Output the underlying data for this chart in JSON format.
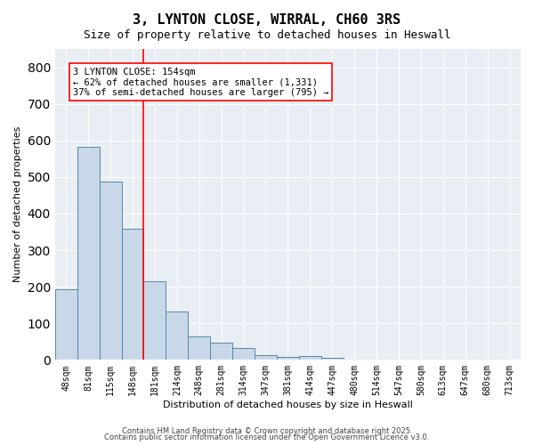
{
  "title": "3, LYNTON CLOSE, WIRRAL, CH60 3RS",
  "subtitle": "Size of property relative to detached houses in Heswall",
  "xlabel": "Distribution of detached houses by size in Heswall",
  "ylabel": "Number of detached properties",
  "bar_values": [
    193,
    583,
    487,
    358,
    216,
    133,
    65,
    48,
    33,
    14,
    8,
    10,
    5,
    0,
    0,
    0,
    0,
    0,
    0,
    0,
    0
  ],
  "categories": [
    "48sqm",
    "81sqm",
    "115sqm",
    "148sqm",
    "181sqm",
    "214sqm",
    "248sqm",
    "281sqm",
    "314sqm",
    "347sqm",
    "381sqm",
    "414sqm",
    "447sqm",
    "480sqm",
    "514sqm",
    "547sqm",
    "580sqm",
    "613sqm",
    "647sqm",
    "680sqm",
    "713sqm"
  ],
  "bar_color": "#c8d8e8",
  "bar_edge_color": "#5588aa",
  "vline_x": 3.5,
  "vline_color": "red",
  "annotation_text": "3 LYNTON CLOSE: 154sqm\n← 62% of detached houses are smaller (1,331)\n37% of semi-detached houses are larger (795) →",
  "annotation_box_color": "white",
  "annotation_box_edge": "red",
  "ylim": [
    0,
    850
  ],
  "background_color": "#e8eef4",
  "footer_line1": "Contains HM Land Registry data © Crown copyright and database right 2025.",
  "footer_line2": "Contains public sector information licensed under the Open Government Licence v3.0."
}
